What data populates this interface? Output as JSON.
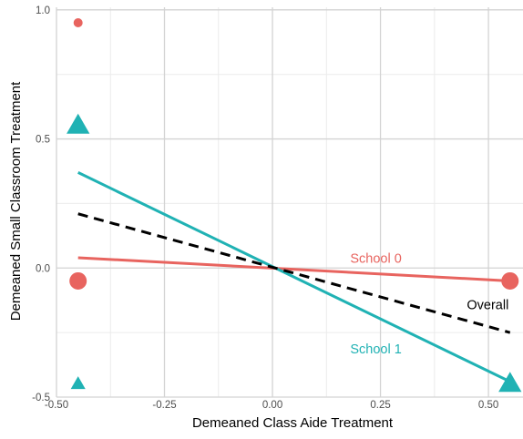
{
  "chart_data": {
    "type": "scatter",
    "title": "",
    "xlabel": "Demeaned Class Aide Treatment",
    "ylabel": "Demeaned Small Classroom Treatment",
    "xlim": [
      -0.5,
      0.58
    ],
    "ylim": [
      -0.5,
      1.01
    ],
    "x_ticks": [
      -0.5,
      -0.25,
      0.0,
      0.25,
      0.5
    ],
    "x_tick_labels": [
      "-0.50",
      "-0.25",
      "0.00",
      "0.25",
      "0.50"
    ],
    "y_ticks": [
      -0.5,
      0.0,
      0.5,
      1.0
    ],
    "y_tick_labels": [
      "-0.5",
      "0.0",
      "0.5",
      "1.0"
    ],
    "grid": true,
    "legend": "none",
    "colors": {
      "school0": "#E8645F",
      "school1": "#20B2B4",
      "overall": "#000000"
    },
    "points": [
      {
        "series": "School 0",
        "shape": "circle",
        "x": -0.45,
        "y": 0.95,
        "size": "small"
      },
      {
        "series": "School 0",
        "shape": "circle",
        "x": -0.45,
        "y": -0.05,
        "size": "large"
      },
      {
        "series": "School 0",
        "shape": "circle",
        "x": 0.55,
        "y": -0.05,
        "size": "large"
      },
      {
        "series": "School 1",
        "shape": "triangle",
        "x": -0.45,
        "y": 0.55,
        "size": "large"
      },
      {
        "series": "School 1",
        "shape": "triangle",
        "x": -0.45,
        "y": -0.45,
        "size": "small"
      },
      {
        "series": "School 1",
        "shape": "triangle",
        "x": 0.55,
        "y": -0.45,
        "size": "large"
      }
    ],
    "lines": [
      {
        "name": "School 0",
        "style": "solid",
        "x": [
          -0.45,
          0.55
        ],
        "y": [
          0.04,
          -0.05
        ]
      },
      {
        "name": "School 1",
        "style": "solid",
        "x": [
          -0.45,
          0.55
        ],
        "y": [
          0.37,
          -0.44
        ]
      },
      {
        "name": "Overall",
        "style": "dashed",
        "x": [
          -0.45,
          0.55
        ],
        "y": [
          0.21,
          -0.25
        ]
      }
    ],
    "annotations": [
      {
        "text": "School 0",
        "series": "School 0",
        "x": 0.18,
        "y": 0.02
      },
      {
        "text": "School 1",
        "series": "School 1",
        "x": 0.18,
        "y": -0.33
      },
      {
        "text": "Overall",
        "series": "Overall",
        "x": 0.45,
        "y": -0.16
      }
    ]
  }
}
